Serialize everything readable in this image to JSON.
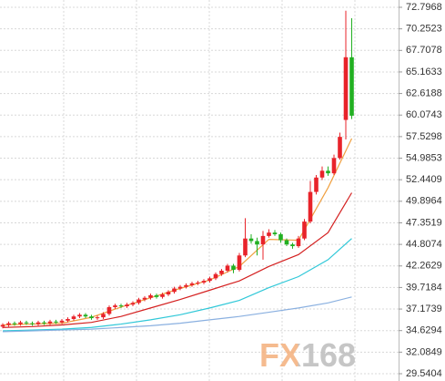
{
  "chart_data": {
    "type": "candlestick",
    "watermark": "FX168",
    "ylim": [
      29.5404,
      72.7968
    ],
    "yticks": [
      72.7968,
      70.2523,
      67.7078,
      65.1633,
      62.6188,
      60.0743,
      57.5298,
      54.9853,
      52.4409,
      49.8964,
      47.3519,
      44.8074,
      42.2629,
      39.7184,
      37.1739,
      34.6294,
      32.0849,
      29.5404
    ],
    "grid": true,
    "up_color": "#e8232a",
    "down_color": "#22b022",
    "open": [
      35.1,
      35.3,
      35.5,
      35.4,
      35.6,
      35.5,
      35.4,
      35.6,
      35.5,
      35.7,
      35.6,
      35.8,
      36.0,
      36.3,
      36.5,
      36.3,
      36.1,
      36.2,
      36.6,
      37.4,
      37.6,
      37.5,
      37.7,
      37.9,
      38.3,
      38.5,
      38.8,
      38.6,
      38.9,
      39.2,
      39.6,
      39.8,
      40.0,
      40.2,
      40.3,
      40.5,
      40.8,
      41.3,
      41.7,
      42.3,
      41.8,
      43.5,
      45.5,
      45.2,
      44.8,
      45.8,
      46.2,
      46.0,
      45.3,
      44.8,
      44.6,
      45.5,
      47.5,
      51.0,
      52.7,
      53.5,
      53.2,
      55.0,
      59.5,
      66.9
    ],
    "high": [
      35.5,
      35.7,
      35.7,
      35.8,
      35.8,
      35.7,
      35.8,
      35.8,
      35.9,
      35.9,
      36.0,
      36.2,
      36.5,
      36.7,
      36.7,
      36.5,
      36.4,
      36.8,
      37.6,
      37.8,
      37.8,
      37.9,
      38.1,
      38.5,
      38.7,
      39.0,
      39.0,
      39.1,
      39.4,
      39.8,
      40.0,
      40.2,
      40.4,
      40.5,
      40.7,
      41.0,
      41.5,
      41.9,
      42.5,
      42.5,
      43.8,
      47.9,
      46.0,
      45.6,
      46.4,
      46.6,
      46.5,
      46.2,
      45.5,
      45.0,
      45.8,
      47.8,
      52.3,
      53.0,
      54.0,
      54.0,
      55.4,
      58.0,
      72.4,
      71.5
    ],
    "low": [
      34.9,
      35.1,
      35.2,
      35.2,
      35.3,
      35.2,
      35.2,
      35.3,
      35.3,
      35.4,
      35.4,
      35.6,
      35.8,
      36.1,
      36.1,
      35.9,
      35.9,
      36.0,
      36.4,
      37.2,
      37.3,
      37.3,
      37.5,
      37.7,
      38.1,
      38.3,
      38.4,
      38.4,
      38.7,
      39.0,
      39.4,
      39.6,
      39.8,
      40.0,
      40.1,
      40.3,
      40.6,
      41.1,
      41.5,
      41.4,
      41.6,
      43.3,
      44.9,
      43.5,
      43.0,
      45.6,
      45.8,
      45.0,
      44.6,
      44.3,
      44.4,
      45.3,
      47.3,
      50.7,
      52.4,
      52.9,
      53.0,
      54.8,
      57.2,
      59.6
    ],
    "close": [
      35.3,
      35.5,
      35.4,
      35.6,
      35.5,
      35.4,
      35.6,
      35.5,
      35.7,
      35.6,
      35.8,
      36.0,
      36.3,
      36.5,
      36.3,
      36.1,
      36.2,
      36.6,
      37.4,
      37.6,
      37.5,
      37.7,
      37.9,
      38.3,
      38.5,
      38.8,
      38.6,
      38.9,
      39.2,
      39.6,
      39.8,
      40.0,
      40.2,
      40.3,
      40.5,
      40.8,
      41.3,
      41.7,
      42.3,
      41.8,
      43.5,
      45.5,
      45.2,
      44.8,
      45.8,
      46.2,
      46.0,
      45.3,
      44.8,
      44.6,
      45.5,
      47.5,
      51.0,
      52.7,
      53.5,
      53.2,
      55.0,
      57.5,
      66.9,
      60.0
    ],
    "ma_x": [
      0,
      5,
      10,
      15,
      20,
      25,
      30,
      35,
      40,
      45,
      50,
      55,
      59
    ],
    "series": [
      {
        "color": "#f0a040",
        "values": [
          35.3,
          35.4,
          35.5,
          36.2,
          37.4,
          38.5,
          39.6,
          40.6,
          42.2,
          45.4,
          45.3,
          51.5,
          57.3
        ]
      },
      {
        "color": "#d42020",
        "values": [
          35.0,
          35.1,
          35.3,
          35.6,
          36.3,
          37.3,
          38.3,
          39.4,
          40.5,
          42.2,
          43.6,
          46.2,
          50.9
        ]
      },
      {
        "color": "#30c8d8",
        "values": [
          34.6,
          34.7,
          34.8,
          35.0,
          35.4,
          35.9,
          36.5,
          37.3,
          38.2,
          39.7,
          41.0,
          43.0,
          45.5
        ]
      },
      {
        "color": "#8ab0e0",
        "values": [
          34.5,
          34.6,
          34.7,
          34.8,
          35.0,
          35.2,
          35.5,
          35.9,
          36.3,
          36.8,
          37.3,
          37.9,
          38.6
        ]
      }
    ]
  }
}
